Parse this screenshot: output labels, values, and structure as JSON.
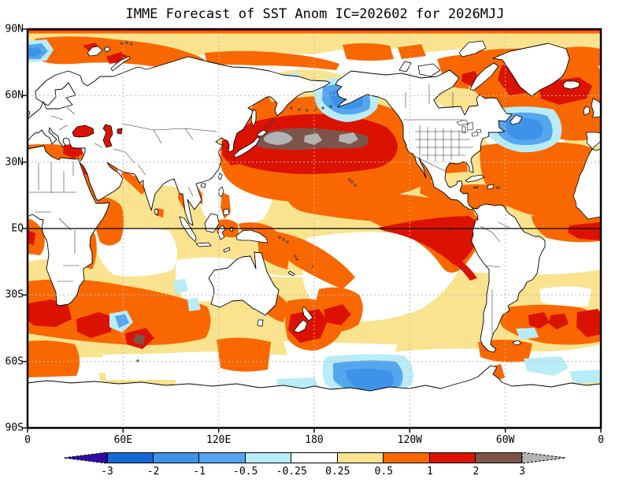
{
  "title": "IMME Forecast of SST Anom IC=202602 for 2026MJJ",
  "axes": {
    "lon_ticks": [
      {
        "label": "0",
        "lon": 0
      },
      {
        "label": "60E",
        "lon": 60
      },
      {
        "label": "120E",
        "lon": 120
      },
      {
        "label": "180",
        "lon": 180
      },
      {
        "label": "120W",
        "lon": 240
      },
      {
        "label": "60W",
        "lon": 300
      },
      {
        "label": "0",
        "lon": 360
      }
    ],
    "lat_ticks": [
      {
        "label": "90N",
        "lat": 90
      },
      {
        "label": "60N",
        "lat": 60
      },
      {
        "label": "30N",
        "lat": 30
      },
      {
        "label": "EQ",
        "lat": 0
      },
      {
        "label": "30S",
        "lat": -30
      },
      {
        "label": "60S",
        "lat": -60
      },
      {
        "label": "90S",
        "lat": -90
      }
    ]
  },
  "colorbar": {
    "boundary_labels": [
      "-3",
      "-2",
      "-1",
      "-0.5",
      "-0.25",
      "0.25",
      "0.5",
      "1",
      "2",
      "3"
    ],
    "segment_colors": [
      "#1569D6",
      "#3E92E8",
      "#55A6EF",
      "#B9ECF9",
      "#FFFFFF",
      "#FAE38F",
      "#F96800",
      "#DC1200",
      "#7C544A"
    ],
    "below_arrow_color": "#2E0BA0",
    "above_arrow_color": "#B3B3B3"
  },
  "colors": {
    "background": "#FFFFFF",
    "coastline": "#000000",
    "graticule": "#B9B9B9",
    "equator_line": "#000000",
    "warm_025_05": "#FAE38F",
    "warm_05_1": "#F96800",
    "warm_1_2": "#DC1200",
    "warm_2_3": "#7C544A",
    "warm_gt3": "#B3B3B3",
    "cool_025_05": "#B9ECF9",
    "cool_05_1": "#55A6EF",
    "cool_1_2": "#3E92E8",
    "cool_2_3": "#1569D6",
    "cool_lt3": "#2E0BA0"
  },
  "chart_data": {
    "type": "heatmap",
    "subtype": "filled-contour global SST anomaly map (GrADS style)",
    "title": "IMME Forecast of SST Anom IC=202602 for 2026MJJ",
    "projection": "global cylindrical lat-lon, Pacific-centered, longitude 0–360E",
    "x_tick_labels": [
      "0",
      "60E",
      "120E",
      "180",
      "120W",
      "60W",
      "0"
    ],
    "y_tick_labels": [
      "90N",
      "60N",
      "30N",
      "EQ",
      "30S",
      "60S",
      "90S"
    ],
    "contour_levels_degC": [
      -3,
      -2,
      -1,
      -0.5,
      -0.25,
      0.25,
      0.5,
      1,
      2,
      3
    ],
    "grid": "dashed graticule every 30 degrees; solid black line on the equator",
    "legend_position": "horizontal colorbar below map with triangular out-of-range arrows",
    "notable_anomalies": [
      {
        "region": "Northwest Pacific east of Japan (~40N, 145E-170W)",
        "value": "+2 to >+3 (gray cores >3)"
      },
      {
        "region": "Sea of Japan / East China Sea / Black Sea / Caspian Sea",
        "value": "+1 to +2"
      },
      {
        "region": "Equatorial eastern Pacific and Peru coast",
        "value": "+1 to +2"
      },
      {
        "region": "Subpolar North Atlantic: Labrador Sea and south of Iceland",
        "value": "+1 to +2"
      },
      {
        "region": "North Atlantic south of Greenland (~45N 45W)",
        "value": "-0.5 to -2 (cool blob)"
      },
      {
        "region": "Gulf of Alaska / eastern Bering Sea",
        "value": "-0.5 to -2"
      },
      {
        "region": "Barents/Kara Seas and Siberian Arctic coast",
        "value": "+0.5 to +1"
      },
      {
        "region": "South Indian Ocean 40-55S",
        "value": "+1 to +2 patches"
      },
      {
        "region": "Southeast of New Zealand",
        "value": "+1 to +2"
      },
      {
        "region": "South Pacific ~60S 130W",
        "value": "-0.5 to -2"
      },
      {
        "region": "South Atlantic 40-50S band",
        "value": "+0.5 to +2"
      },
      {
        "region": "Most remaining ocean",
        "value": "+0.25 to +1"
      }
    ]
  }
}
